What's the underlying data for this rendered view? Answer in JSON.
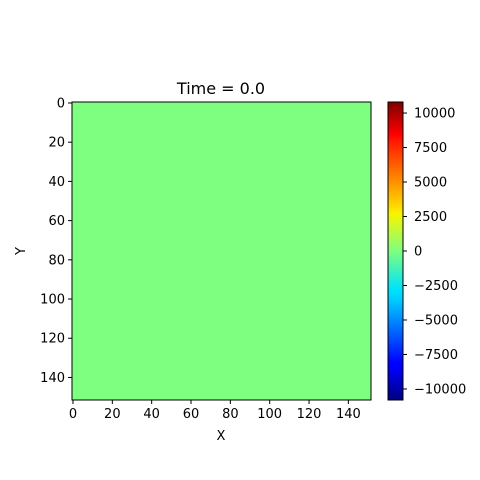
{
  "chart_data": {
    "type": "heatmap",
    "title": "Time = 0.0",
    "xlabel": "X",
    "ylabel": "Y",
    "xlim": [
      -0.5,
      151.5
    ],
    "ylim": [
      151.5,
      -0.5
    ],
    "x_ticks": [
      0,
      20,
      40,
      60,
      80,
      100,
      120,
      140
    ],
    "y_ticks": [
      0,
      20,
      40,
      60,
      80,
      100,
      120,
      140
    ],
    "grid_shape": [
      152,
      152
    ],
    "fill_value": 0,
    "colormap": "jet",
    "colorbar": {
      "vmin": -10800,
      "vmax": 10800,
      "ticks": [
        10000,
        7500,
        5000,
        2500,
        0,
        -2500,
        -5000,
        -7500,
        -10000
      ]
    },
    "colors": {
      "field": "#7fff7f",
      "frame": "#000000"
    }
  }
}
